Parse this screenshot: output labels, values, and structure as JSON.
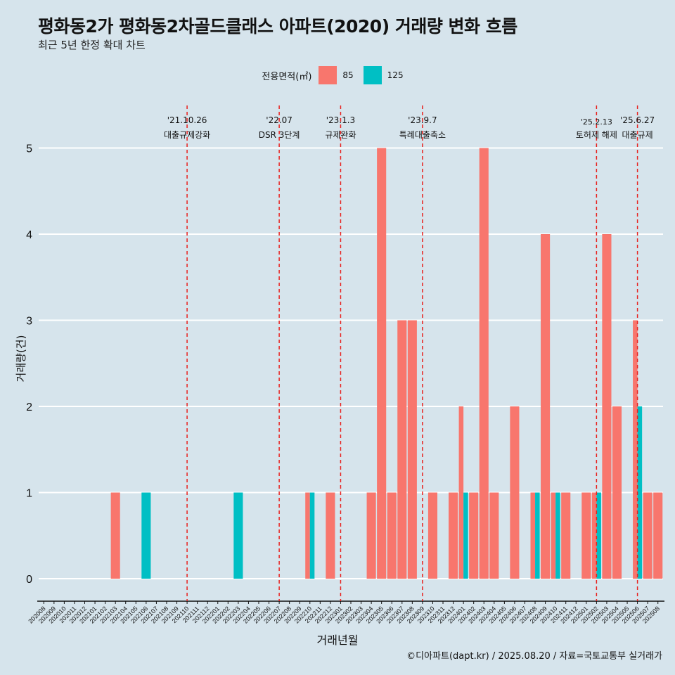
{
  "title": "평화동2가 평화동2차골드클래스 아파트(2020) 거래량 변화 흐름",
  "subtitle": "최근 5년 한정 확대 차트",
  "caption": "©디아파트(dapt.kr) / 2025.08.20 / 자료=국토교통부 실거래가",
  "legend": {
    "title": "전용면적(㎡)",
    "items": [
      {
        "label": "85",
        "color": "#F8766D"
      },
      {
        "label": "125",
        "color": "#00BFC4"
      }
    ]
  },
  "chart_data": {
    "type": "bar",
    "title": "평화동2가 평화동2차골드클래스 아파트(2020) 거래량 변화 흐름",
    "subtitle": "최근 5년 한정 확대 차트",
    "xlabel": "거래년월",
    "ylabel": "거래량(건)",
    "ylim": [
      0,
      5
    ],
    "yticks": [
      0,
      1,
      2,
      3,
      4,
      5
    ],
    "grid": true,
    "legend_position": "top",
    "categories": [
      "202008",
      "202009",
      "202010",
      "202011",
      "202012",
      "202101",
      "202102",
      "202103",
      "202104",
      "202105",
      "202106",
      "202107",
      "202108",
      "202109",
      "202110",
      "202111",
      "202112",
      "202201",
      "202202",
      "202203",
      "202204",
      "202205",
      "202206",
      "202207",
      "202208",
      "202209",
      "202210",
      "202211",
      "202212",
      "202301",
      "202302",
      "202303",
      "202304",
      "202305",
      "202306",
      "202307",
      "202308",
      "202309",
      "202310",
      "202311",
      "202312",
      "202401",
      "202402",
      "202403",
      "202404",
      "202405",
      "202406",
      "202407",
      "202408",
      "202409",
      "202410",
      "202411",
      "202412",
      "202501",
      "202502",
      "202503",
      "202504",
      "202505",
      "202506",
      "202507",
      "202508"
    ],
    "series": [
      {
        "name": "85",
        "color": "#F8766D",
        "values": [
          0,
          0,
          0,
          0,
          0,
          0,
          0,
          1,
          0,
          0,
          0,
          0,
          0,
          0,
          0,
          0,
          0,
          0,
          0,
          0,
          0,
          0,
          0,
          0,
          0,
          0,
          1,
          0,
          1,
          0,
          0,
          0,
          1,
          5,
          1,
          3,
          3,
          0,
          1,
          0,
          1,
          2,
          1,
          5,
          1,
          0,
          2,
          0,
          1,
          4,
          1,
          1,
          0,
          1,
          1,
          4,
          2,
          0,
          3,
          1,
          1
        ]
      },
      {
        "name": "125",
        "color": "#00BFC4",
        "values": [
          0,
          0,
          0,
          0,
          0,
          0,
          0,
          0,
          0,
          0,
          1,
          0,
          0,
          0,
          0,
          0,
          0,
          0,
          0,
          1,
          0,
          0,
          0,
          0,
          0,
          0,
          1,
          0,
          0,
          0,
          0,
          0,
          0,
          0,
          0,
          0,
          0,
          0,
          0,
          0,
          0,
          1,
          0,
          0,
          0,
          0,
          0,
          0,
          1,
          0,
          1,
          0,
          0,
          0,
          1,
          0,
          0,
          0,
          2,
          0,
          0
        ]
      }
    ],
    "annotations": [
      {
        "month": "202110",
        "date": "'21.10.26",
        "label": "대출규제강화"
      },
      {
        "month": "202207",
        "date": "'22.07",
        "label": "DSR 3단계"
      },
      {
        "month": "202301",
        "date": "'23.1.3",
        "label": "규제완화"
      },
      {
        "month": "202309",
        "date": "'23.9.7",
        "label": "특례대출축소"
      },
      {
        "month": "202502",
        "date": "'25.2.13",
        "label": "토허제 해제"
      },
      {
        "month": "202506",
        "date": "'25.6.27",
        "label": "대출규제"
      }
    ]
  }
}
